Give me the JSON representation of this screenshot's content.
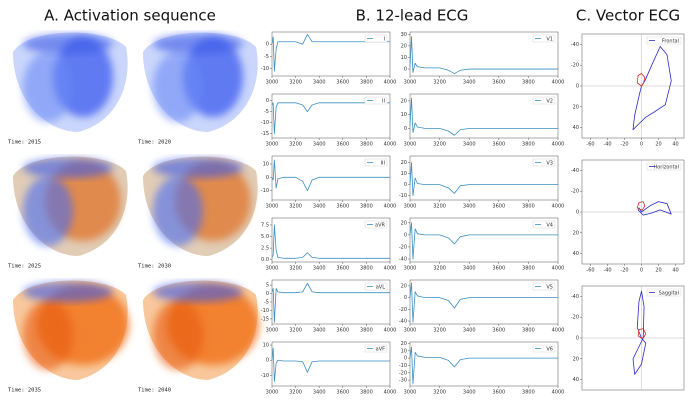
{
  "panels": {
    "a_title": "A. Activation sequence",
    "b_title": "B. 12-lead ECG",
    "c_title": "C. Vector ECG"
  },
  "activation": {
    "captions": [
      "Time: 2015",
      "Time: 2020",
      "Time: 2025",
      "Time: 2030",
      "Time: 2035",
      "Time: 2040"
    ]
  },
  "chart_data": [
    {
      "type": "line",
      "xlim": [
        3000,
        4000
      ],
      "xticks": [
        3000,
        3200,
        3400,
        3600,
        3800,
        4000
      ],
      "ylim": [
        -13,
        5
      ],
      "yticks": [
        0,
        -5,
        -10
      ],
      "x": [
        3000,
        3010,
        3020,
        3035,
        3050,
        3100,
        3200,
        3260,
        3300,
        3340,
        3400,
        4000
      ],
      "series": [
        {
          "name": "I",
          "color": "#3a8fc0",
          "values": [
            0,
            3,
            -11,
            -2,
            1,
            1,
            1,
            0,
            4,
            1,
            1,
            1
          ]
        }
      ]
    },
    {
      "type": "line",
      "xlim": [
        3000,
        4000
      ],
      "xticks": [
        3000,
        3200,
        3400,
        3600,
        3800,
        4000
      ],
      "ylim": [
        -17,
        3
      ],
      "yticks": [
        0,
        -5,
        -10,
        -15
      ],
      "x": [
        3000,
        3010,
        3020,
        3035,
        3050,
        3100,
        3200,
        3260,
        3300,
        3340,
        3400,
        4000
      ],
      "series": [
        {
          "name": "II",
          "color": "#3a8fc0",
          "values": [
            -2,
            -1,
            -15,
            -3,
            -1,
            -1,
            -1,
            -2,
            -5,
            -2,
            -1,
            -1
          ]
        }
      ]
    },
    {
      "type": "line",
      "xlim": [
        3000,
        4000
      ],
      "xticks": [
        3000,
        3200,
        3400,
        3600,
        3800,
        4000
      ],
      "ylim": [
        -17,
        16
      ],
      "yticks": [
        10,
        0,
        -10
      ],
      "x": [
        3000,
        3010,
        3020,
        3035,
        3050,
        3100,
        3200,
        3260,
        3300,
        3340,
        3400,
        4000
      ],
      "series": [
        {
          "name": "III",
          "color": "#3a8fc0",
          "values": [
            0,
            -2,
            13,
            -8,
            -1,
            0,
            0,
            -3,
            -10,
            -2,
            0,
            0
          ]
        }
      ]
    },
    {
      "type": "line",
      "xlim": [
        3000,
        4000
      ],
      "xticks": [
        3000,
        3200,
        3400,
        3600,
        3800,
        4000
      ],
      "ylim": [
        -0.5,
        9
      ],
      "yticks": [
        {
          "value": 7.5,
          "label": "7.5"
        },
        {
          "value": 5,
          "label": "5.0"
        },
        {
          "value": 2.5,
          "label": "2.5"
        },
        {
          "value": 0,
          "label": "0.0"
        }
      ],
      "x": [
        3000,
        3010,
        3020,
        3035,
        3050,
        3100,
        3200,
        3260,
        3300,
        3340,
        3400,
        4000
      ],
      "series": [
        {
          "name": "aVR",
          "color": "#3a8fc0",
          "values": [
            0.5,
            1,
            7.5,
            2,
            0.5,
            0.3,
            0.3,
            0.5,
            1.5,
            0.5,
            0.3,
            0.3
          ]
        }
      ]
    },
    {
      "type": "line",
      "xlim": [
        3000,
        4000
      ],
      "xticks": [
        3000,
        3200,
        3400,
        3600,
        3800,
        4000
      ],
      "ylim": [
        -18,
        8
      ],
      "yticks": [
        5,
        0,
        -5,
        -10,
        -15
      ],
      "x": [
        3000,
        3010,
        3020,
        3035,
        3050,
        3100,
        3200,
        3260,
        3300,
        3340,
        3400,
        4000
      ],
      "series": [
        {
          "name": "aVL",
          "color": "#3a8fc0",
          "values": [
            1,
            3,
            -17,
            3,
            1,
            0.5,
            0.5,
            1,
            6,
            1,
            0.5,
            0.5
          ]
        }
      ]
    },
    {
      "type": "line",
      "xlim": [
        3000,
        4000
      ],
      "xticks": [
        3000,
        3200,
        3400,
        3600,
        3800,
        4000
      ],
      "ylim": [
        -17,
        12
      ],
      "yticks": [
        10,
        0,
        -10
      ],
      "x": [
        3000,
        3010,
        3020,
        3035,
        3050,
        3100,
        3200,
        3260,
        3300,
        3340,
        3400,
        4000
      ],
      "series": [
        {
          "name": "aVF",
          "color": "#3a8fc0",
          "values": [
            0,
            8,
            -14,
            -2,
            0,
            -0.5,
            -0.5,
            -1,
            -8,
            -1,
            -0.5,
            -0.5
          ]
        }
      ]
    },
    {
      "type": "line",
      "xlim": [
        3000,
        4000
      ],
      "xticks": [
        3000,
        3200,
        3400,
        3600,
        3800,
        4000
      ],
      "ylim": [
        -6,
        32
      ],
      "yticks": [
        30,
        20,
        10,
        0
      ],
      "x": [
        3000,
        3010,
        3020,
        3035,
        3050,
        3100,
        3200,
        3260,
        3300,
        3340,
        3400,
        4000
      ],
      "series": [
        {
          "name": "V1",
          "color": "#3a8fc0",
          "values": [
            2,
            28,
            -3,
            5,
            2,
            1,
            1,
            -1,
            -4,
            -1,
            0,
            0
          ]
        }
      ]
    },
    {
      "type": "line",
      "xlim": [
        3000,
        4000
      ],
      "xticks": [
        3000,
        3200,
        3400,
        3600,
        3800,
        4000
      ],
      "ylim": [
        -7,
        25
      ],
      "yticks": [
        20,
        10,
        0
      ],
      "x": [
        3000,
        3010,
        3020,
        3035,
        3050,
        3100,
        3200,
        3260,
        3300,
        3340,
        3400,
        4000
      ],
      "series": [
        {
          "name": "V2",
          "color": "#3a8fc0",
          "values": [
            2,
            22,
            -3,
            4,
            1,
            0,
            0,
            -2,
            -5,
            -1,
            0,
            0
          ]
        }
      ]
    },
    {
      "type": "line",
      "xlim": [
        3000,
        4000
      ],
      "xticks": [
        3000,
        3200,
        3400,
        3600,
        3800,
        4000
      ],
      "ylim": [
        -14,
        26
      ],
      "yticks": [
        20,
        10,
        0,
        -10
      ],
      "x": [
        3000,
        3010,
        3020,
        3035,
        3050,
        3100,
        3200,
        3260,
        3300,
        3340,
        3400,
        4000
      ],
      "series": [
        {
          "name": "V3",
          "color": "#3a8fc0",
          "values": [
            0,
            20,
            -10,
            6,
            1,
            0,
            0,
            -3,
            -8,
            -1,
            0,
            0
          ]
        }
      ]
    },
    {
      "type": "line",
      "xlim": [
        3000,
        4000
      ],
      "xticks": [
        3000,
        3200,
        3400,
        3600,
        3800,
        4000
      ],
      "ylim": [
        -45,
        28
      ],
      "yticks": [
        20,
        0,
        -20,
        -40
      ],
      "x": [
        3000,
        3010,
        3020,
        3035,
        3050,
        3100,
        3200,
        3260,
        3300,
        3340,
        3400,
        4000
      ],
      "series": [
        {
          "name": "V4",
          "color": "#3a8fc0",
          "values": [
            0,
            20,
            -40,
            10,
            2,
            0,
            0,
            -5,
            -15,
            -3,
            0,
            0
          ]
        }
      ]
    },
    {
      "type": "line",
      "xlim": [
        3000,
        4000
      ],
      "xticks": [
        3000,
        3200,
        3400,
        3600,
        3800,
        4000
      ],
      "ylim": [
        -45,
        30
      ],
      "yticks": [
        20,
        0,
        -20,
        -40
      ],
      "x": [
        3000,
        3010,
        3020,
        3035,
        3050,
        3100,
        3200,
        3260,
        3300,
        3340,
        3400,
        4000
      ],
      "series": [
        {
          "name": "V5",
          "color": "#3a8fc0",
          "values": [
            0,
            25,
            -42,
            10,
            3,
            0,
            0,
            -5,
            -18,
            -3,
            0,
            0
          ]
        }
      ]
    },
    {
      "type": "line",
      "xlim": [
        3000,
        4000
      ],
      "xticks": [
        3000,
        3200,
        3400,
        3600,
        3800,
        4000
      ],
      "ylim": [
        -38,
        22
      ],
      "yticks": [
        20,
        10,
        0,
        -10,
        -20,
        -30
      ],
      "x": [
        3000,
        3010,
        3020,
        3035,
        3050,
        3100,
        3200,
        3260,
        3300,
        3340,
        3400,
        4000
      ],
      "series": [
        {
          "name": "V6",
          "color": "#3a8fc0",
          "values": [
            0,
            15,
            -35,
            8,
            3,
            1,
            1,
            -3,
            -12,
            -2,
            0,
            0
          ]
        }
      ]
    },
    {
      "type": "line",
      "xlim": [
        -70,
        50
      ],
      "xticks": [
        -60,
        -40,
        -20,
        0,
        20,
        40
      ],
      "ylim": [
        50,
        -50
      ],
      "yticks": [
        -40,
        -20,
        0,
        20,
        40
      ],
      "series": [
        {
          "name": "Frontal",
          "color": "#2b2bc8",
          "x": [
            0,
            -3,
            -8,
            -10,
            -5,
            5,
            15,
            28,
            35,
            30,
            22,
            12,
            4,
            0
          ],
          "values": [
            0,
            10,
            28,
            42,
            38,
            30,
            25,
            18,
            -5,
            -30,
            -38,
            -20,
            -5,
            0
          ]
        },
        {
          "color": "#d62728",
          "x": [
            0,
            -5,
            -4,
            0,
            4,
            2,
            0
          ],
          "values": [
            0,
            -3,
            -10,
            -12,
            -8,
            -2,
            0
          ]
        }
      ]
    },
    {
      "type": "line",
      "xlim": [
        -70,
        50
      ],
      "xticks": [
        -60,
        -40,
        -20,
        0,
        20,
        40
      ],
      "ylim": [
        50,
        -50
      ],
      "yticks": [
        -40,
        -20,
        0,
        20,
        40
      ],
      "series": [
        {
          "name": "Horizontal",
          "color": "#2b2bc8",
          "x": [
            0,
            10,
            20,
            30,
            35,
            22,
            12,
            2,
            -4,
            -3,
            0
          ],
          "values": [
            0,
            -6,
            -10,
            -8,
            2,
            -2,
            1,
            3,
            -2,
            -4,
            0
          ]
        },
        {
          "color": "#d62728",
          "x": [
            0,
            -5,
            -3,
            2,
            4,
            1,
            0
          ],
          "values": [
            -2,
            -4,
            -9,
            -10,
            -6,
            -2,
            -2
          ]
        }
      ]
    },
    {
      "type": "line",
      "xlim": [
        -70,
        50
      ],
      "ylim": [
        50,
        -50
      ],
      "yticks": [
        -40,
        -20,
        0,
        20,
        40
      ],
      "series": [
        {
          "name": "Saggital",
          "color": "#2b2bc8",
          "x": [
            0,
            -5,
            -3,
            0,
            3,
            2,
            -10,
            -8,
            0,
            5,
            0
          ],
          "values": [
            0,
            -10,
            -35,
            -45,
            -30,
            0,
            20,
            35,
            25,
            5,
            0
          ]
        },
        {
          "color": "#d62728",
          "x": [
            0,
            -4,
            -3,
            2,
            5,
            2,
            0
          ],
          "values": [
            0,
            -2,
            -8,
            -9,
            -4,
            0,
            0
          ]
        }
      ]
    }
  ]
}
